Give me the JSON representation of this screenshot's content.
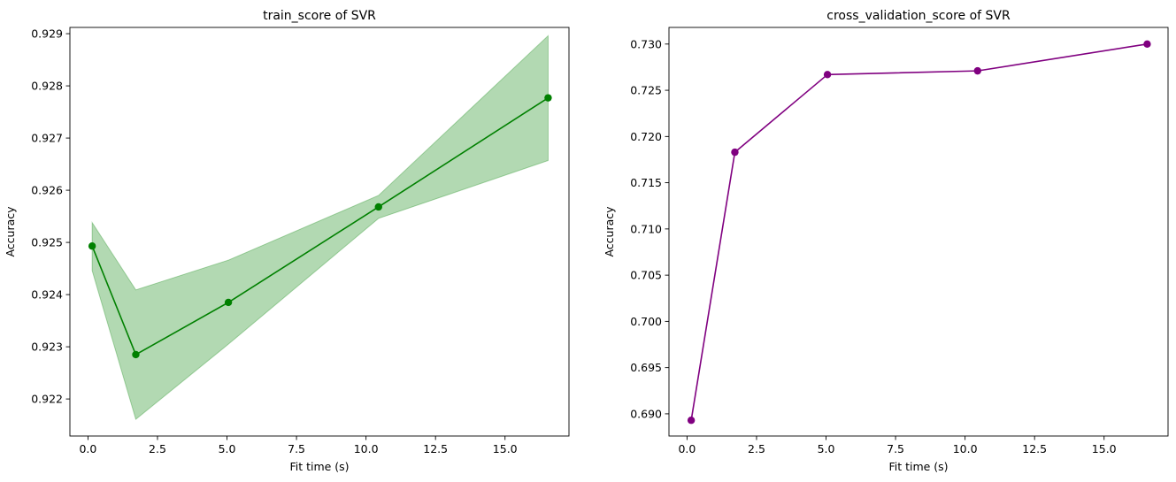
{
  "chart_data": [
    {
      "type": "line",
      "title": "train_score of SVR",
      "xlabel": "Fit time (s)",
      "ylabel": "Accuracy",
      "xlim": [
        -0.65,
        17.3
      ],
      "ylim": [
        0.92129,
        0.92912
      ],
      "xticks": [
        0.0,
        2.5,
        5.0,
        7.5,
        10.0,
        12.5,
        15.0
      ],
      "xtick_labels": [
        "0.0",
        "2.5",
        "5.0",
        "7.5",
        "10.0",
        "12.5",
        "15.0"
      ],
      "yticks": [
        0.922,
        0.923,
        0.924,
        0.925,
        0.926,
        0.927,
        0.928,
        0.929
      ],
      "ytick_labels": [
        "0.922",
        "0.923",
        "0.924",
        "0.925",
        "0.926",
        "0.927",
        "0.928",
        "0.929"
      ],
      "grid": false,
      "series": [
        {
          "color": "#008000",
          "band_color": "#008000",
          "x": [
            0.15,
            1.72,
            5.05,
            10.45,
            16.55
          ],
          "y": [
            0.92493,
            0.92285,
            0.92385,
            0.92568,
            0.92777
          ],
          "y_lower": [
            0.92446,
            0.92161,
            0.92305,
            0.92546,
            0.92657
          ],
          "y_upper": [
            0.92538,
            0.92409,
            0.92466,
            0.9259,
            0.92896
          ]
        }
      ]
    },
    {
      "type": "line",
      "title": "cross_validation_score of SVR",
      "xlabel": "Fit time (s)",
      "ylabel": "Accuracy",
      "xlim": [
        -0.65,
        17.3
      ],
      "ylim": [
        0.6876,
        0.7318
      ],
      "xticks": [
        0.0,
        2.5,
        5.0,
        7.5,
        10.0,
        12.5,
        15.0
      ],
      "xtick_labels": [
        "0.0",
        "2.5",
        "5.0",
        "7.5",
        "10.0",
        "12.5",
        "15.0"
      ],
      "yticks": [
        0.69,
        0.695,
        0.7,
        0.705,
        0.71,
        0.715,
        0.72,
        0.725,
        0.73
      ],
      "ytick_labels": [
        "0.690",
        "0.695",
        "0.700",
        "0.705",
        "0.710",
        "0.715",
        "0.720",
        "0.725",
        "0.730"
      ],
      "grid": false,
      "series": [
        {
          "color": "#800080",
          "x": [
            0.15,
            1.72,
            5.05,
            10.45,
            16.55
          ],
          "y": [
            0.6893,
            0.7183,
            0.7267,
            0.7271,
            0.73
          ]
        }
      ]
    }
  ]
}
